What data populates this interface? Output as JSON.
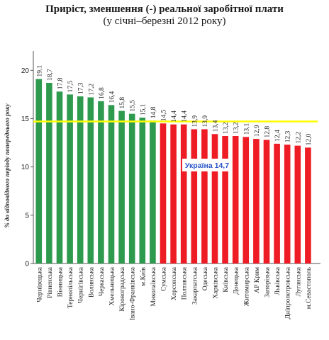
{
  "chart_data": {
    "type": "bar",
    "title": "Приріст, зменшення (-) реальної заробітної плати",
    "subtitle": "(у січні–березні 2012 року)",
    "ylabel": "% до відповідного періоду попереднього року",
    "xlabel": "",
    "ylim": [
      0,
      22
    ],
    "yticks": [
      0,
      5,
      10,
      15,
      20
    ],
    "grid": false,
    "reference_line": {
      "value": 14.7,
      "label": "Україна 14,7",
      "color": "#ffff00"
    },
    "colors": {
      "above": "#2e9a4e",
      "below": "#ee1c24",
      "reference": "#ffff00",
      "annotation": "#2a55c8"
    },
    "categories": [
      "Чернівецька",
      "Рівненська",
      "Вінницька",
      "Тернопільська",
      "Чернігівська",
      "Волинська",
      "Черкаська",
      "Хмельницька",
      "Кіровоградська",
      "Івано-Франківська",
      "м.Київ",
      "Миколаївська",
      "Сумська",
      "Херсонська",
      "Полтавська",
      "Закарпатська",
      "Одеська",
      "Харківська",
      "Київська",
      "Донецька",
      "Житомирська",
      "АР Крим",
      "Запорізька",
      "Львівська",
      "Дніпропетровська",
      "Луганська",
      "м.Севастополь"
    ],
    "values": [
      19.1,
      18.7,
      17.8,
      17.5,
      17.3,
      17.2,
      16.8,
      16.4,
      15.8,
      15.5,
      15.1,
      14.8,
      14.5,
      14.4,
      14.4,
      13.9,
      13.9,
      13.4,
      13.2,
      13.2,
      13.1,
      12.9,
      12.8,
      12.4,
      12.3,
      12.2,
      12.0
    ],
    "value_labels": [
      "19,1",
      "18,7",
      "17,8",
      "17,5",
      "17,3",
      "17,2",
      "16,8",
      "16,4",
      "15,8",
      "15,5",
      "15,1",
      "14,8",
      "14,5",
      "14,4",
      "14,4",
      "13,9",
      "13,9",
      "13,4",
      "13,2",
      "13,2",
      "13,1",
      "12,9",
      "12,8",
      "12,4",
      "12,3",
      "12,2",
      "12,0"
    ]
  }
}
